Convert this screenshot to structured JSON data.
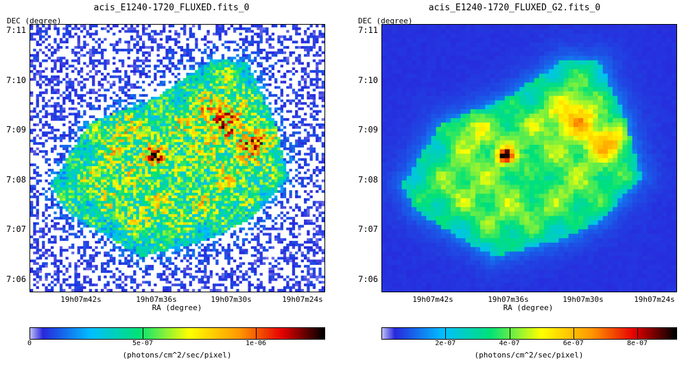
{
  "chart_data": [
    {
      "type": "heatmap",
      "title": "acis_E1240-1720_FLUXED.fits_0",
      "xlabel": "RA (degree)",
      "ylabel": "DEC (degree)",
      "x_ticks": [
        "19h07m42s",
        "19h07m36s",
        "19h07m30s",
        "19h07m24s"
      ],
      "y_ticks": [
        "7:11",
        "7:10",
        "7:09",
        "7:08",
        "7:07",
        "7:06"
      ],
      "colorbar": {
        "label": "(photons/cm^2/sec/pixel)",
        "ticks": [
          "0",
          "5e-07",
          "1e-06"
        ],
        "range": [
          0,
          1.3e-06
        ]
      },
      "style": "noisy",
      "peak_flux": 1.2e-06
    },
    {
      "type": "heatmap",
      "title": "acis_E1240-1720_FLUXED_G2.fits_0",
      "xlabel": "RA (degree)",
      "ylabel": "DEC (degree)",
      "x_ticks": [
        "19h07m42s",
        "19h07m36s",
        "19h07m30s",
        "19h07m24s"
      ],
      "y_ticks": [
        "7:11",
        "7:10",
        "7:09",
        "7:08",
        "7:07",
        "7:06"
      ],
      "colorbar": {
        "label": "(photons/cm^2/sec/pixel)",
        "ticks": [
          "2e-07",
          "4e-07",
          "6e-07",
          "8e-07"
        ],
        "range": [
          0,
          9.2e-07
        ]
      },
      "style": "smoothed",
      "peak_flux": 9e-07
    }
  ]
}
